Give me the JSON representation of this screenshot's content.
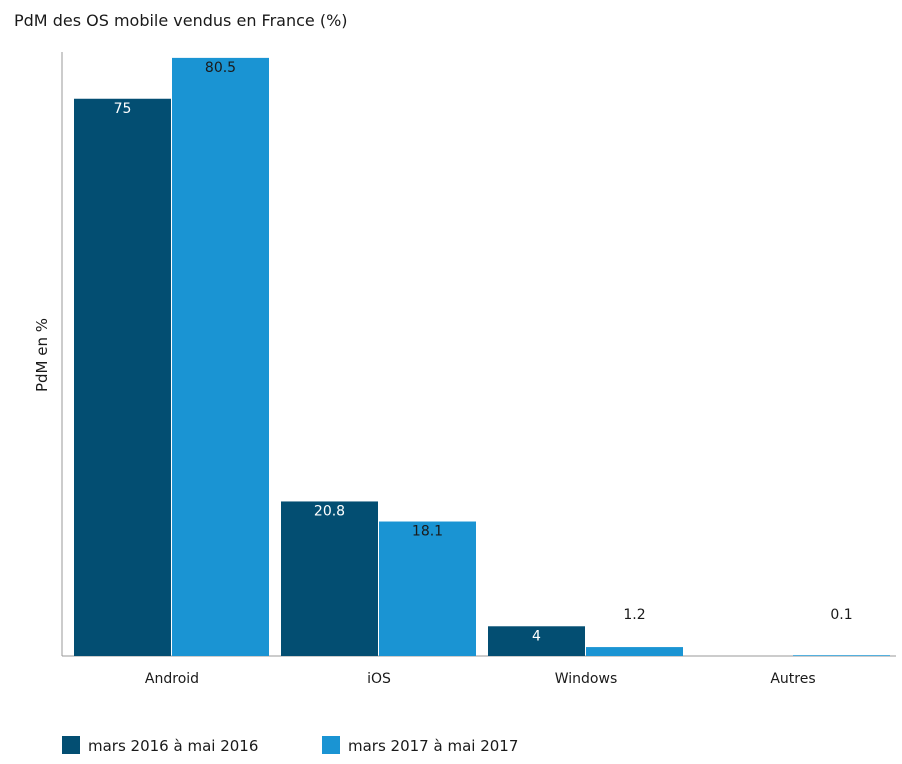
{
  "chart_data": {
    "type": "bar",
    "title": "PdM des OS mobile vendus en France (%)",
    "xlabel": "",
    "ylabel": "PdM en %",
    "categories": [
      "Android",
      "iOS",
      "Windows",
      "Autres"
    ],
    "series": [
      {
        "name": "mars 2016 à mai 2016",
        "color": "#034e72",
        "values": [
          75,
          20.8,
          4,
          null
        ],
        "labels": [
          "75",
          "20.8",
          "4",
          ""
        ]
      },
      {
        "name": "mars 2017 à mai 2017",
        "color": "#1a94d3",
        "values": [
          80.5,
          18.1,
          1.2,
          0.1
        ],
        "labels": [
          "80.5",
          "18.1",
          "1.2",
          "0.1"
        ]
      }
    ],
    "ylim": [
      0,
      84
    ],
    "grid": false,
    "legend": "bottom-left"
  }
}
